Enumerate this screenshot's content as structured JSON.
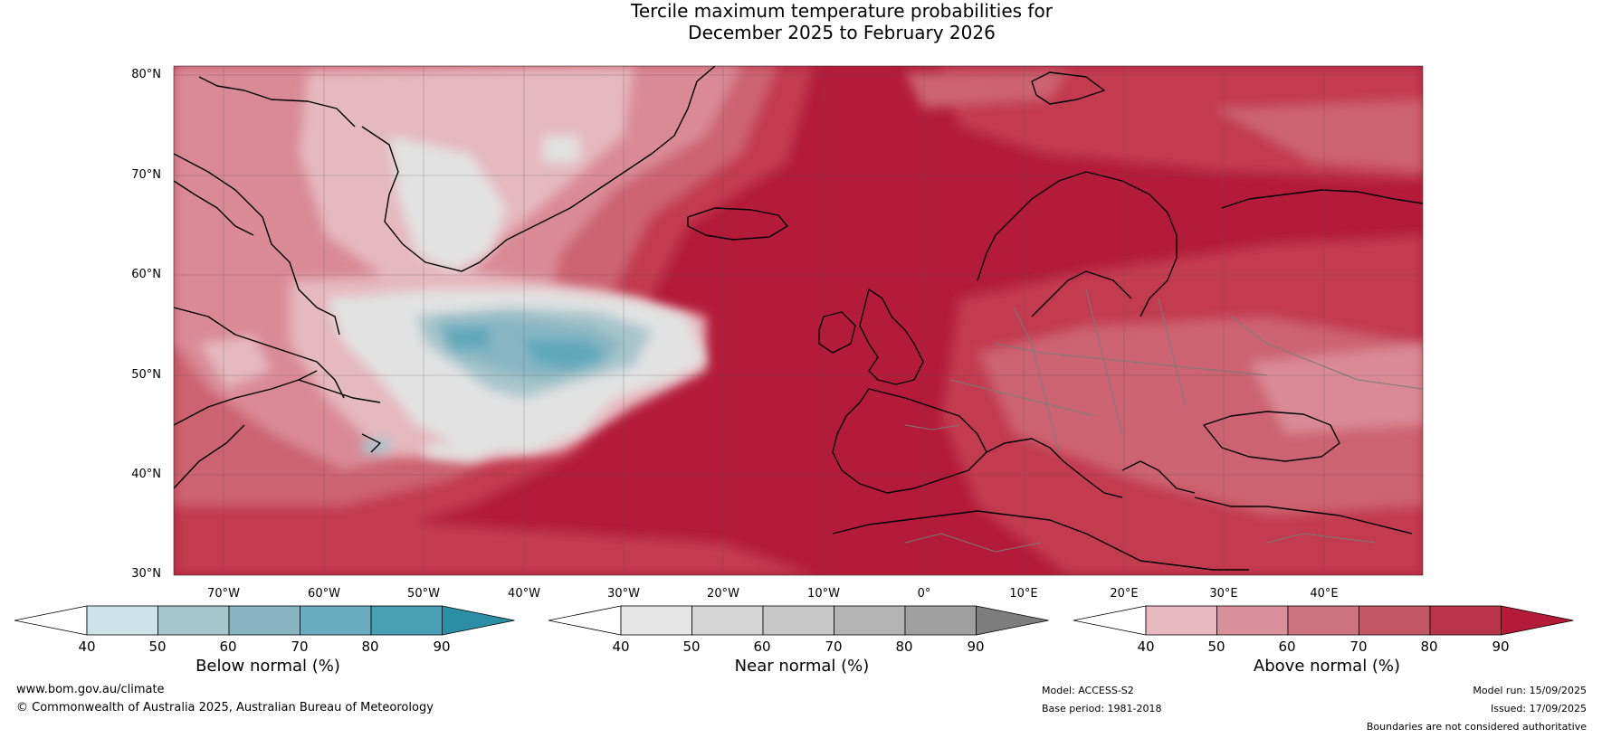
{
  "title": {
    "line1": "Tercile maximum temperature probabilities for",
    "line2": "December 2025 to February 2026"
  },
  "map": {
    "lat_labels": [
      "80°N",
      "70°N",
      "60°N",
      "50°N",
      "40°N",
      "30°N"
    ],
    "lon_labels": [
      "70°W",
      "60°W",
      "50°W",
      "40°W",
      "30°W",
      "20°W",
      "10°W",
      "0°",
      "10°E",
      "20°E",
      "30°E",
      "40°E"
    ],
    "colors": {
      "above_90": "#b31b38",
      "above_80": "#c23a50",
      "above_70": "#cc6470",
      "above_60": "#d98a95",
      "above_50": "#e6b8c0",
      "near": "#e2e2e2",
      "below_50": "#a8c5cc",
      "below_60": "#88b6c3",
      "below_70": "#5fa8ba",
      "below_80": "#3b9bb0"
    }
  },
  "colorbars": [
    {
      "title": "Below normal (%)",
      "ticks": [
        "40",
        "50",
        "60",
        "70",
        "80",
        "90"
      ],
      "colors": [
        "#ffffff",
        "#cce3ea",
        "#a6c6cd",
        "#88b3c1",
        "#6aadc0",
        "#469fb3",
        "#2b8ea4"
      ]
    },
    {
      "title": "Near normal (%)",
      "ticks": [
        "40",
        "50",
        "60",
        "70",
        "80",
        "90"
      ],
      "colors": [
        "#ffffff",
        "#e6e6e6",
        "#d6d6d6",
        "#c7c7c7",
        "#b4b4b4",
        "#a0a0a0",
        "#7d7d7d"
      ]
    },
    {
      "title": "Above normal (%)",
      "ticks": [
        "40",
        "50",
        "60",
        "70",
        "80",
        "90"
      ],
      "colors": [
        "#ffffff",
        "#e6b8c0",
        "#d8909a",
        "#cc737d",
        "#c25764",
        "#b93349",
        "#b31b38"
      ]
    }
  ],
  "footer": {
    "website": "www.bom.gov.au/climate",
    "copyright": "© Commonwealth of Australia 2025, Australian Bureau of Meteorology",
    "model": "Model: ACCESS-S2",
    "base_period": "Base period: 1981-2018",
    "model_run": "Model run: 15/09/2025",
    "issued": "Issued: 17/09/2025",
    "disclaimer": "Boundaries are not considered authoritative"
  }
}
